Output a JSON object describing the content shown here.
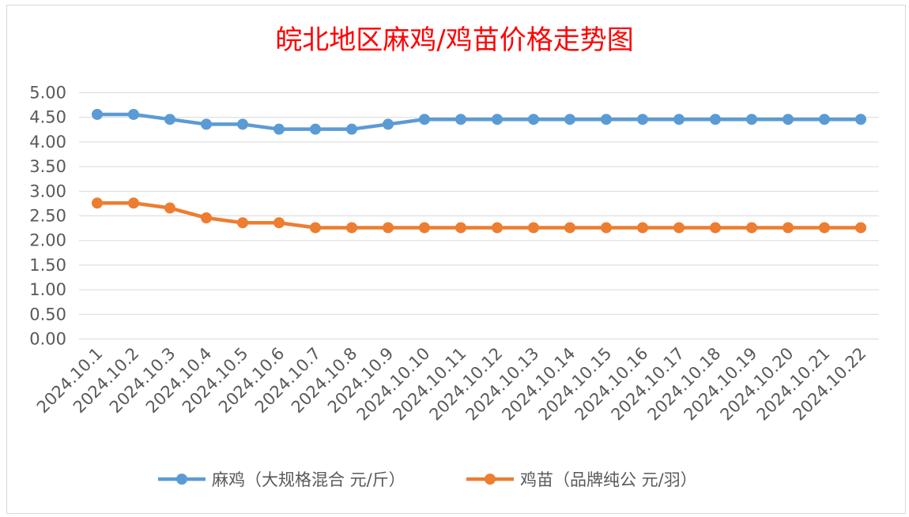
{
  "chart_data": {
    "type": "line",
    "title": "皖北地区麻鸡/鸡苗价格走势图",
    "categories": [
      "2024.10.1",
      "2024.10.2",
      "2024.10.3",
      "2024.10.4",
      "2024.10.5",
      "2024.10.6",
      "2024.10.7",
      "2024.10.8",
      "2024.10.9",
      "2024.10.10",
      "2024.10.11",
      "2024.10.12",
      "2024.10.13",
      "2024.10.14",
      "2024.10.15",
      "2024.10.16",
      "2024.10.17",
      "2024.10.18",
      "2024.10.19",
      "2024.10.20",
      "2024.10.21",
      "2024.10.22"
    ],
    "y_ticks": [
      "0.00",
      "0.50",
      "1.00",
      "1.50",
      "2.00",
      "2.50",
      "3.00",
      "3.50",
      "4.00",
      "4.50",
      "5.00"
    ],
    "ylim": [
      0,
      5
    ],
    "grid": true,
    "legend_position": "bottom",
    "series": [
      {
        "name": "麻鸡（大规格混合 元/斤）",
        "color": "#5b9bd5",
        "values": [
          4.56,
          4.56,
          4.46,
          4.36,
          4.36,
          4.26,
          4.26,
          4.26,
          4.36,
          4.46,
          4.46,
          4.46,
          4.46,
          4.46,
          4.46,
          4.46,
          4.46,
          4.46,
          4.46,
          4.46,
          4.46,
          4.46
        ]
      },
      {
        "name": "鸡苗（品牌纯公 元/羽）",
        "color": "#ed7d31",
        "values": [
          2.76,
          2.76,
          2.66,
          2.46,
          2.36,
          2.36,
          2.26,
          2.26,
          2.26,
          2.26,
          2.26,
          2.26,
          2.26,
          2.26,
          2.26,
          2.26,
          2.26,
          2.26,
          2.26,
          2.26,
          2.26,
          2.26
        ]
      }
    ]
  }
}
